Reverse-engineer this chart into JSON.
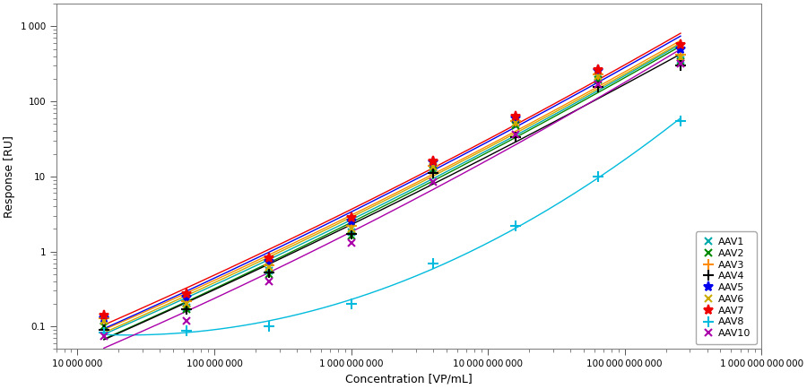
{
  "title": "",
  "xlabel": "Concentration [VP/mL]",
  "ylabel": "Response [RU]",
  "xlim": [
    7000000.0,
    1000000000000.0
  ],
  "ylim_log": [
    0.05,
    2000
  ],
  "series": {
    "AAV1": {
      "color": "#00AAAA",
      "marker": "x",
      "markersize": 6,
      "linewidth": 1.0,
      "x": [
        15600000.0,
        62500000.0,
        250000000.0,
        1000000000.0,
        4000000000.0,
        16000000000.0,
        64000000000.0,
        256000000000.0
      ],
      "y": [
        0.12,
        0.18,
        0.55,
        1.8,
        13.0,
        50.0,
        210.0,
        360.0
      ]
    },
    "AAV2": {
      "color": "#008800",
      "marker": "x",
      "markersize": 6,
      "linewidth": 1.0,
      "x": [
        15600000.0,
        62500000.0,
        250000000.0,
        1000000000.0,
        4000000000.0,
        16000000000.0,
        64000000000.0,
        256000000000.0
      ],
      "y": [
        0.1,
        0.17,
        0.5,
        1.6,
        12.0,
        48.0,
        195.0,
        340.0
      ]
    },
    "AAV3": {
      "color": "#FF8C00",
      "marker": "+",
      "markersize": 8,
      "linewidth": 1.0,
      "x": [
        15600000.0,
        62500000.0,
        250000000.0,
        1000000000.0,
        4000000000.0,
        16000000000.0,
        64000000000.0,
        256000000000.0
      ],
      "y": [
        0.13,
        0.22,
        0.65,
        2.2,
        14.0,
        55.0,
        230.0,
        420.0
      ]
    },
    "AAV4": {
      "color": "#000000",
      "marker": "+",
      "markersize": 8,
      "linewidth": 1.0,
      "x": [
        15600000.0,
        62500000.0,
        250000000.0,
        1000000000.0,
        4000000000.0,
        16000000000.0,
        64000000000.0,
        256000000000.0
      ],
      "y": [
        0.09,
        0.17,
        0.52,
        1.7,
        11.0,
        33.0,
        155.0,
        300.0
      ]
    },
    "AAV5": {
      "color": "#0000EE",
      "marker": "*",
      "markersize": 8,
      "linewidth": 1.0,
      "x": [
        15600000.0,
        62500000.0,
        250000000.0,
        1000000000.0,
        4000000000.0,
        16000000000.0,
        64000000000.0,
        256000000000.0
      ],
      "y": [
        0.13,
        0.24,
        0.72,
        2.5,
        15.5,
        60.0,
        255.0,
        500.0
      ]
    },
    "AAV6": {
      "color": "#CCAA00",
      "marker": "x",
      "markersize": 6,
      "linewidth": 1.0,
      "x": [
        15600000.0,
        62500000.0,
        250000000.0,
        1000000000.0,
        4000000000.0,
        16000000000.0,
        64000000000.0,
        256000000000.0
      ],
      "y": [
        0.12,
        0.2,
        0.62,
        2.0,
        13.5,
        52.0,
        215.0,
        390.0
      ]
    },
    "AAV7": {
      "color": "#EE0000",
      "marker": "*",
      "markersize": 8,
      "linewidth": 1.0,
      "x": [
        15600000.0,
        62500000.0,
        250000000.0,
        1000000000.0,
        4000000000.0,
        16000000000.0,
        64000000000.0,
        256000000000.0
      ],
      "y": [
        0.14,
        0.27,
        0.82,
        2.8,
        16.0,
        63.0,
        265.0,
        570.0
      ]
    },
    "AAV8": {
      "color": "#00BBDD",
      "marker": "+",
      "markersize": 8,
      "linewidth": 1.0,
      "x": [
        15600000.0,
        62500000.0,
        250000000.0,
        1000000000.0,
        4000000000.0,
        16000000000.0,
        64000000000.0,
        256000000000.0
      ],
      "y": [
        0.082,
        0.088,
        0.1,
        0.2,
        0.7,
        2.2,
        10.0,
        55.0
      ]
    },
    "AAV10": {
      "color": "#AA00AA",
      "marker": "x",
      "markersize": 6,
      "linewidth": 1.0,
      "x": [
        15600000.0,
        62500000.0,
        250000000.0,
        1000000000.0,
        4000000000.0,
        16000000000.0,
        64000000000.0,
        256000000000.0
      ],
      "y": [
        0.075,
        0.12,
        0.4,
        1.3,
        8.5,
        36.0,
        170.0,
        315.0
      ]
    }
  },
  "background_color": "#FFFFFF",
  "tick_label_fontsize": 7.5,
  "axis_label_fontsize": 9,
  "legend_fontsize": 8
}
